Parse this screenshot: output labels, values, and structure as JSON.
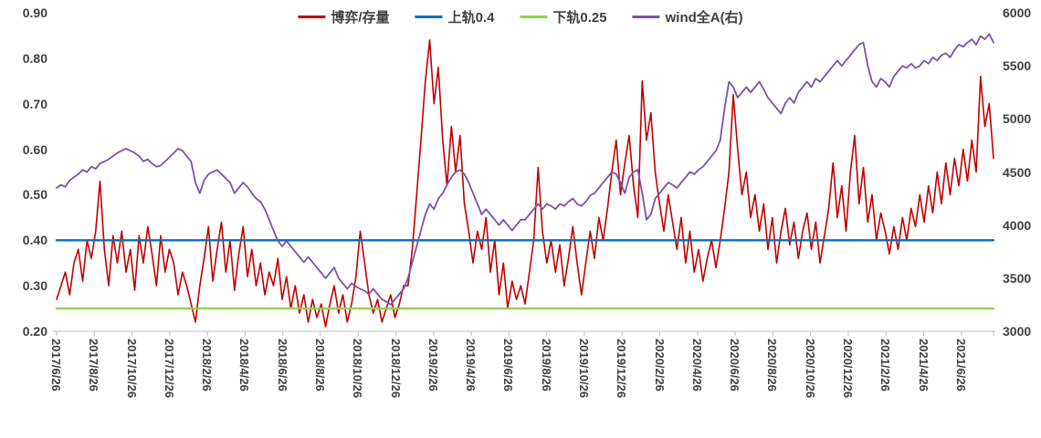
{
  "chart_data": {
    "type": "line",
    "title": "",
    "legend_position": "top",
    "grid": false,
    "left_axis": {
      "min": 0.2,
      "max": 0.9,
      "ticks": [
        "0.90",
        "0.80",
        "0.70",
        "0.60",
        "0.50",
        "0.40",
        "0.30",
        "0.20"
      ]
    },
    "right_axis": {
      "min": 3000,
      "max": 6000,
      "ticks": [
        "6000",
        "5500",
        "5000",
        "4500",
        "4000",
        "3500",
        "3000"
      ]
    },
    "x_labels": [
      "2017/6/26",
      "2017/8/26",
      "2017/10/26",
      "2017/12/26",
      "2018/2/26",
      "2018/4/26",
      "2018/6/26",
      "2018/8/26",
      "2018/10/26",
      "2018/12/26",
      "2019/2/26",
      "2019/4/26",
      "2019/6/26",
      "2019/8/26",
      "2019/10/26",
      "2019/12/26",
      "2020/2/26",
      "2020/4/26",
      "2020/6/26",
      "2020/8/26",
      "2020/10/26",
      "2020/12/26",
      "2021/2/26",
      "2021/4/26",
      "2021/6/26"
    ],
    "x_axis_end_fraction": 0.9657,
    "legend": [
      {
        "label": "博弈/存量",
        "color": "#C00000"
      },
      {
        "label": "上轨0.4",
        "color": "#0070C0"
      },
      {
        "label": "下轨0.25",
        "color": "#92D050"
      },
      {
        "label": "wind全A(右)",
        "color": "#7A52AB"
      }
    ],
    "series": [
      {
        "key": "boyi-cunliang",
        "name": "博弈/存量",
        "axis": "left",
        "color": "#C00000",
        "width": 1.6,
        "values": [
          0.27,
          0.3,
          0.33,
          0.28,
          0.35,
          0.38,
          0.31,
          0.4,
          0.36,
          0.42,
          0.53,
          0.38,
          0.3,
          0.41,
          0.35,
          0.42,
          0.33,
          0.38,
          0.29,
          0.41,
          0.35,
          0.43,
          0.37,
          0.3,
          0.41,
          0.33,
          0.38,
          0.35,
          0.28,
          0.33,
          0.3,
          0.26,
          0.22,
          0.3,
          0.36,
          0.43,
          0.31,
          0.38,
          0.44,
          0.33,
          0.4,
          0.29,
          0.37,
          0.43,
          0.32,
          0.38,
          0.3,
          0.35,
          0.28,
          0.33,
          0.3,
          0.36,
          0.27,
          0.32,
          0.25,
          0.3,
          0.24,
          0.28,
          0.22,
          0.27,
          0.23,
          0.26,
          0.21,
          0.26,
          0.3,
          0.24,
          0.28,
          0.22,
          0.26,
          0.32,
          0.42,
          0.35,
          0.28,
          0.24,
          0.27,
          0.22,
          0.25,
          0.28,
          0.23,
          0.26,
          0.3,
          0.3,
          0.38,
          0.5,
          0.62,
          0.75,
          0.84,
          0.7,
          0.78,
          0.62,
          0.52,
          0.65,
          0.55,
          0.63,
          0.48,
          0.42,
          0.35,
          0.42,
          0.38,
          0.45,
          0.33,
          0.4,
          0.28,
          0.35,
          0.25,
          0.31,
          0.27,
          0.3,
          0.26,
          0.33,
          0.4,
          0.56,
          0.42,
          0.35,
          0.4,
          0.33,
          0.39,
          0.3,
          0.36,
          0.43,
          0.35,
          0.28,
          0.35,
          0.42,
          0.36,
          0.45,
          0.4,
          0.47,
          0.55,
          0.62,
          0.5,
          0.57,
          0.63,
          0.52,
          0.45,
          0.75,
          0.62,
          0.68,
          0.55,
          0.48,
          0.42,
          0.5,
          0.44,
          0.38,
          0.45,
          0.35,
          0.42,
          0.33,
          0.38,
          0.31,
          0.36,
          0.4,
          0.34,
          0.4,
          0.47,
          0.55,
          0.72,
          0.6,
          0.5,
          0.55,
          0.45,
          0.5,
          0.42,
          0.48,
          0.38,
          0.45,
          0.35,
          0.42,
          0.47,
          0.39,
          0.44,
          0.36,
          0.42,
          0.46,
          0.38,
          0.44,
          0.35,
          0.41,
          0.47,
          0.57,
          0.45,
          0.52,
          0.42,
          0.55,
          0.63,
          0.48,
          0.56,
          0.44,
          0.5,
          0.4,
          0.46,
          0.42,
          0.37,
          0.43,
          0.38,
          0.45,
          0.4,
          0.47,
          0.43,
          0.5,
          0.44,
          0.52,
          0.46,
          0.55,
          0.48,
          0.57,
          0.5,
          0.58,
          0.52,
          0.6,
          0.53,
          0.62,
          0.55,
          0.76,
          0.65,
          0.7,
          0.58
        ]
      },
      {
        "key": "upper-band",
        "name": "上轨0.4",
        "axis": "left",
        "color": "#0070C0",
        "width": 2.4,
        "constant": 0.4
      },
      {
        "key": "lower-band",
        "name": "下轨0.25",
        "axis": "left",
        "color": "#92D050",
        "width": 2.4,
        "constant": 0.25
      },
      {
        "key": "wind-all-a",
        "name": "wind全A(右)",
        "axis": "right",
        "color": "#7A52AB",
        "width": 1.8,
        "values": [
          4350,
          4380,
          4360,
          4420,
          4450,
          4480,
          4520,
          4500,
          4550,
          4530,
          4580,
          4600,
          4620,
          4650,
          4680,
          4700,
          4720,
          4700,
          4680,
          4650,
          4600,
          4620,
          4580,
          4550,
          4560,
          4600,
          4640,
          4680,
          4720,
          4700,
          4650,
          4600,
          4400,
          4300,
          4420,
          4480,
          4500,
          4520,
          4480,
          4440,
          4400,
          4300,
          4350,
          4400,
          4360,
          4300,
          4250,
          4220,
          4150,
          4050,
          3950,
          3850,
          3800,
          3850,
          3800,
          3750,
          3700,
          3650,
          3700,
          3650,
          3600,
          3550,
          3500,
          3550,
          3600,
          3500,
          3450,
          3400,
          3450,
          3420,
          3400,
          3380,
          3350,
          3400,
          3350,
          3300,
          3280,
          3250,
          3300,
          3350,
          3400,
          3500,
          3650,
          3800,
          3950,
          4100,
          4200,
          4150,
          4250,
          4300,
          4380,
          4450,
          4500,
          4520,
          4480,
          4400,
          4300,
          4200,
          4100,
          4150,
          4100,
          4050,
          4000,
          4050,
          4000,
          3950,
          4000,
          4050,
          4050,
          4100,
          4150,
          4200,
          4150,
          4200,
          4180,
          4150,
          4200,
          4180,
          4220,
          4250,
          4200,
          4180,
          4220,
          4280,
          4300,
          4350,
          4400,
          4450,
          4500,
          4480,
          4400,
          4300,
          4450,
          4500,
          4520,
          4300,
          4050,
          4100,
          4250,
          4300,
          4350,
          4400,
          4380,
          4350,
          4400,
          4450,
          4500,
          4480,
          4520,
          4550,
          4600,
          4650,
          4700,
          4800,
          5100,
          5350,
          5300,
          5200,
          5250,
          5300,
          5250,
          5300,
          5350,
          5280,
          5200,
          5150,
          5100,
          5050,
          5150,
          5200,
          5150,
          5250,
          5300,
          5350,
          5300,
          5380,
          5350,
          5400,
          5450,
          5500,
          5550,
          5500,
          5550,
          5600,
          5650,
          5700,
          5720,
          5500,
          5350,
          5300,
          5380,
          5350,
          5300,
          5400,
          5450,
          5500,
          5480,
          5520,
          5480,
          5500,
          5550,
          5520,
          5580,
          5550,
          5600,
          5620,
          5580,
          5650,
          5700,
          5680,
          5720,
          5750,
          5700,
          5780,
          5750,
          5800,
          5720
        ]
      }
    ]
  }
}
